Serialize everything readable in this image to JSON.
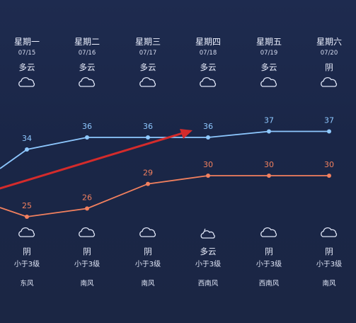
{
  "days": [
    {
      "weekday": "星期一",
      "date": "07/15",
      "day_weather": "多云",
      "day_icon": "cloud-icon",
      "night_weather": "阴",
      "night_icon": "cloud-icon",
      "wind_force": "小于3级",
      "wind_dir": "东风",
      "high": 34,
      "low": 25
    },
    {
      "weekday": "星期二",
      "date": "07/16",
      "day_weather": "多云",
      "day_icon": "cloud-icon",
      "night_weather": "阴",
      "night_icon": "cloud-icon",
      "wind_force": "小于3级",
      "wind_dir": "南风",
      "high": 36,
      "low": 26
    },
    {
      "weekday": "星期三",
      "date": "07/17",
      "day_weather": "多云",
      "day_icon": "cloud-icon",
      "night_weather": "阴",
      "night_icon": "cloud-icon",
      "wind_force": "小于3级",
      "wind_dir": "南风",
      "high": 36,
      "low": 29
    },
    {
      "weekday": "星期四",
      "date": "07/18",
      "day_weather": "多云",
      "day_icon": "cloud-icon",
      "night_weather": "多云",
      "night_icon": "partly-cloudy-night-icon",
      "wind_force": "小于3级",
      "wind_dir": "西南风",
      "high": 36,
      "low": 30
    },
    {
      "weekday": "星期五",
      "date": "07/19",
      "day_weather": "多云",
      "day_icon": "cloud-icon",
      "night_weather": "阴",
      "night_icon": "cloud-icon",
      "wind_force": "小于3级",
      "wind_dir": "西南风",
      "high": 37,
      "low": 30
    },
    {
      "weekday": "星期六",
      "date": "07/20",
      "day_weather": "阴",
      "day_icon": "cloud-icon",
      "night_weather": "阴",
      "night_icon": "cloud-icon",
      "wind_force": "小于3级",
      "wind_dir": "南风",
      "high": 37,
      "low": 30
    }
  ],
  "colors": {
    "high_line": "#8ec8ff",
    "low_line": "#f2805e",
    "annotation_arrow": "#d42b2b"
  },
  "chart_data": {
    "type": "line",
    "categories": [
      "07/15",
      "07/16",
      "07/17",
      "07/18",
      "07/19",
      "07/20"
    ],
    "series": [
      {
        "values": [
          34,
          36,
          36,
          36,
          37,
          37
        ]
      },
      {
        "values": [
          25,
          26,
          29,
          30,
          30,
          30
        ]
      }
    ]
  }
}
